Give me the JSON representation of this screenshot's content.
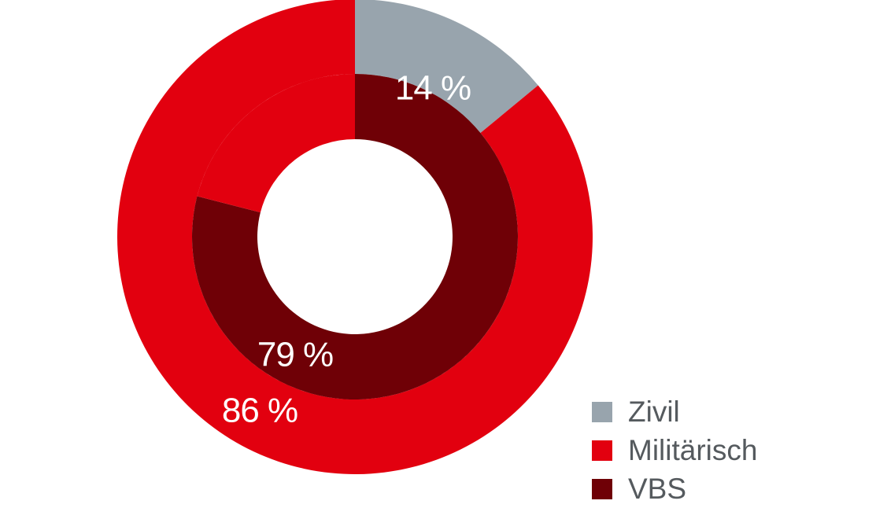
{
  "chart_data": {
    "type": "pie",
    "variant": "nested-donut",
    "rings": [
      {
        "ring": "outer",
        "slices": [
          {
            "name": "Zivil",
            "value": 14,
            "label": "14 %",
            "color": "#98a4ad"
          },
          {
            "name": "Militärisch",
            "value": 86,
            "label": "86 %",
            "color": "#e2000f"
          }
        ]
      },
      {
        "ring": "inner",
        "slices": [
          {
            "name": "VBS",
            "value": 79,
            "label": "79 %",
            "color": "#6f0006"
          },
          {
            "name": "",
            "value": 21,
            "label": "",
            "color": "#e2000f"
          }
        ]
      }
    ],
    "legend": {
      "position": "bottom-right",
      "items": [
        {
          "label": "Zivil",
          "color": "#98a4ad"
        },
        {
          "label": "Militärisch",
          "color": "#e2000f"
        },
        {
          "label": "VBS",
          "color": "#6f0006"
        }
      ]
    }
  }
}
